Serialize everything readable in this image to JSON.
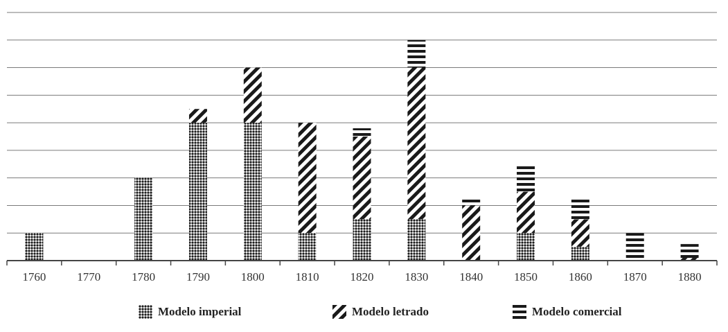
{
  "chart_data": {
    "type": "bar",
    "stacked": true,
    "categories": [
      "1760",
      "1770",
      "1780",
      "1790",
      "1800",
      "1810",
      "1820",
      "1830",
      "1840",
      "1850",
      "1860",
      "1870",
      "1880"
    ],
    "series": [
      {
        "name": "Modelo imperial",
        "pattern": "dots",
        "values": [
          1,
          0,
          3,
          5,
          5,
          1,
          1.5,
          1.5,
          0,
          1,
          0.5,
          0,
          0
        ]
      },
      {
        "name": "Modelo letrado",
        "pattern": "diagonal",
        "values": [
          0,
          0,
          0,
          0.5,
          2,
          4,
          3,
          5.5,
          2,
          1.5,
          1,
          0,
          0.1
        ]
      },
      {
        "name": "Modelo comercial",
        "pattern": "horizontal",
        "values": [
          0,
          0,
          0,
          0,
          0,
          0,
          0.3,
          1,
          0.25,
          1,
          0.75,
          1,
          0.5
        ]
      }
    ],
    "ylim": [
      0,
      9
    ],
    "grid": true,
    "legend_position": "bottom",
    "colors": {
      "ink": "#1a1a1a",
      "grid": "#7a7a7a",
      "axis": "#444444"
    }
  }
}
